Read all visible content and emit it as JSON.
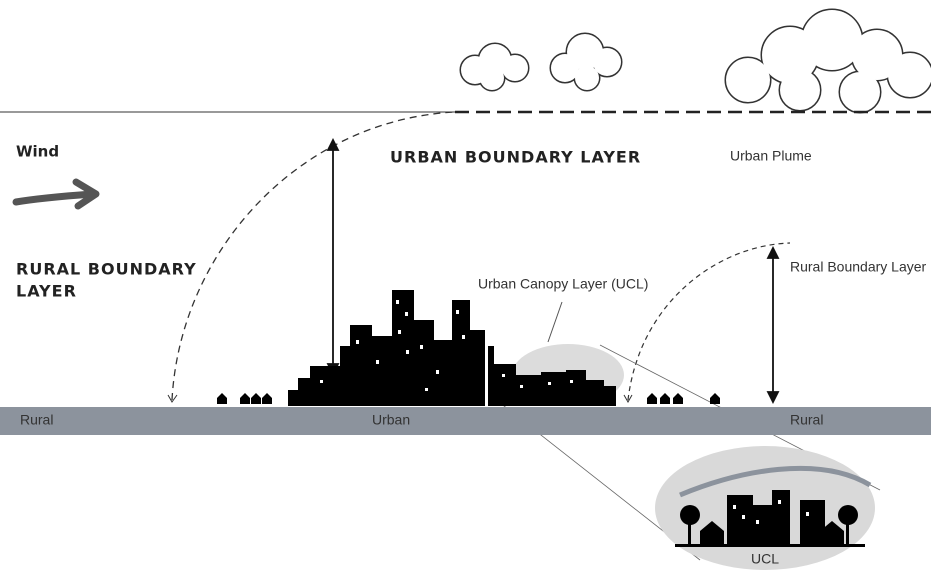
{
  "wind": "Wind",
  "urban_boundary_layer": "URBAN BOUNDARY LAYER",
  "urban_plume": "Urban Plume",
  "rural_boundary_layer": {
    "lines": [
      "RURAL BOUNDARY",
      "LAYER"
    ]
  },
  "urban_canopy_layer": "Urban Canopy Layer (UCL)",
  "rural_boundary_layer_right": "Rural Boundary Layer",
  "ground": {
    "labels": [
      "Rural",
      "Urban",
      "Rural"
    ]
  },
  "inset": {
    "label": "UCL"
  }
}
